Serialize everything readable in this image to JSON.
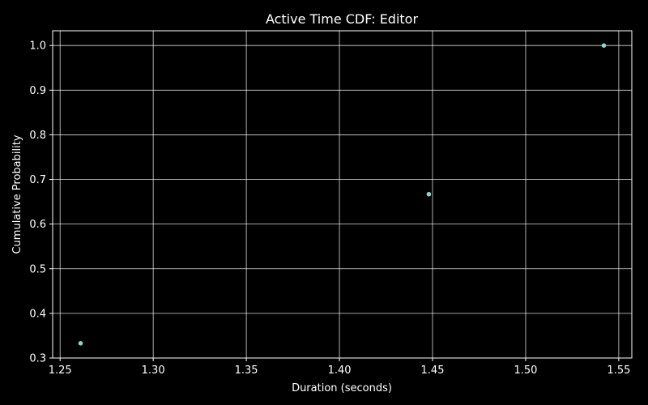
{
  "chart_data": {
    "type": "scatter",
    "title": "Active Time CDF: Editor",
    "xlabel": "Duration (seconds)",
    "ylabel": "Cumulative Probability",
    "xlim": [
      1.246,
      1.557
    ],
    "ylim": [
      0.3,
      1.033
    ],
    "xticks": [
      1.25,
      1.3,
      1.35,
      1.4,
      1.45,
      1.5,
      1.55
    ],
    "xtick_labels": [
      "1.25",
      "1.30",
      "1.35",
      "1.40",
      "1.45",
      "1.50",
      "1.55"
    ],
    "yticks": [
      0.3,
      0.4,
      0.5,
      0.6,
      0.7,
      0.8,
      0.9,
      1.0
    ],
    "ytick_labels": [
      "0.3",
      "0.4",
      "0.5",
      "0.6",
      "0.7",
      "0.8",
      "0.9",
      "1.0"
    ],
    "grid": true,
    "background": "#000000",
    "marker_color": "#8dd3c7",
    "series": [
      {
        "x": [
          1.261,
          1.448,
          1.542
        ],
        "y": [
          0.333,
          0.667,
          1.0
        ]
      }
    ]
  }
}
